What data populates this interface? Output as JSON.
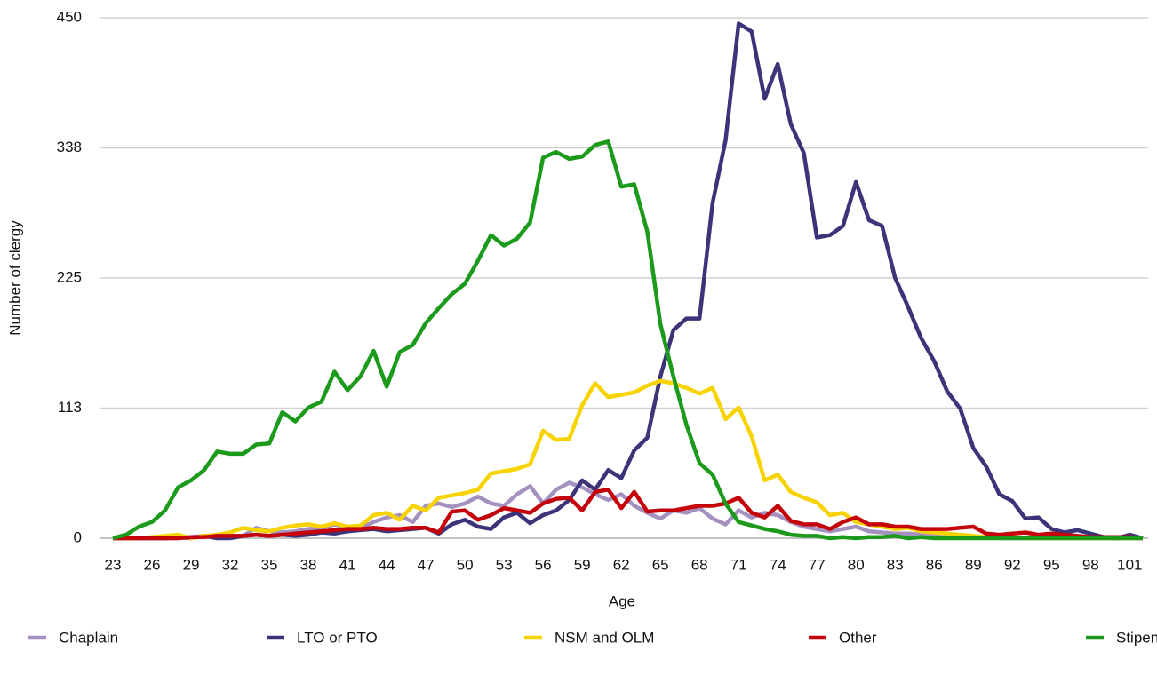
{
  "chart_data": {
    "type": "line",
    "xlabel": "Age",
    "ylabel": "Number of clergy",
    "x": [
      23,
      24,
      25,
      26,
      27,
      28,
      29,
      30,
      31,
      32,
      33,
      34,
      35,
      36,
      37,
      38,
      39,
      40,
      41,
      42,
      43,
      44,
      45,
      46,
      47,
      48,
      49,
      50,
      51,
      52,
      53,
      54,
      55,
      56,
      57,
      58,
      59,
      60,
      61,
      62,
      63,
      64,
      65,
      66,
      67,
      68,
      69,
      70,
      71,
      72,
      73,
      74,
      75,
      76,
      77,
      78,
      79,
      80,
      81,
      82,
      83,
      84,
      85,
      86,
      87,
      88,
      89,
      90,
      91,
      92,
      93,
      94,
      95,
      96,
      97,
      98,
      99,
      100,
      101,
      102
    ],
    "xlim": [
      23,
      102
    ],
    "xticks": [
      23,
      26,
      29,
      32,
      35,
      38,
      41,
      44,
      47,
      50,
      53,
      56,
      59,
      62,
      65,
      68,
      71,
      74,
      77,
      80,
      83,
      86,
      89,
      92,
      95,
      98,
      101
    ],
    "ylim": [
      0,
      450
    ],
    "yticks": [
      0,
      {
        "value": 112.5,
        "label": "113"
      },
      225,
      {
        "value": 337.5,
        "label": "338"
      },
      450
    ],
    "grid": true,
    "legend": "bottom",
    "series": [
      {
        "name": "Chaplain",
        "color": "#a591c0",
        "values": [
          0,
          0,
          0,
          0,
          0,
          0,
          1,
          2,
          2,
          2,
          2,
          9,
          6,
          5,
          6,
          8,
          9,
          12,
          9,
          9,
          14,
          18,
          20,
          14,
          28,
          30,
          27,
          30,
          36,
          30,
          28,
          38,
          45,
          30,
          42,
          48,
          44,
          38,
          33,
          38,
          28,
          22,
          17,
          24,
          22,
          26,
          17,
          12,
          24,
          18,
          22,
          20,
          14,
          10,
          8,
          6,
          8,
          10,
          6,
          5,
          4,
          4,
          3,
          3,
          2,
          2,
          1,
          1,
          0,
          0,
          0,
          0,
          0,
          0,
          0,
          0,
          0,
          0,
          0,
          0
        ]
      },
      {
        "name": "LTO or PTO",
        "color": "#3b3479",
        "values": [
          0,
          0,
          0,
          0,
          0,
          1,
          0,
          2,
          0,
          0,
          2,
          3,
          2,
          3,
          2,
          3,
          5,
          4,
          6,
          7,
          8,
          6,
          7,
          8,
          9,
          4,
          12,
          16,
          10,
          8,
          18,
          22,
          13,
          20,
          24,
          33,
          50,
          42,
          59,
          52,
          76,
          87,
          140,
          180,
          190,
          190,
          290,
          344,
          445,
          438,
          380,
          410,
          358,
          333,
          260,
          262,
          270,
          308,
          275,
          270,
          225,
          200,
          173,
          153,
          127,
          112,
          78,
          62,
          38,
          32,
          17,
          18,
          8,
          5,
          7,
          4,
          1,
          0,
          3,
          0
        ]
      },
      {
        "name": "NSM and OLM",
        "color": "#f7d300",
        "values": [
          0,
          0,
          0,
          1,
          2,
          3,
          0,
          2,
          3,
          5,
          9,
          7,
          6,
          9,
          11,
          12,
          10,
          13,
          10,
          11,
          20,
          22,
          16,
          28,
          24,
          35,
          37,
          39,
          42,
          56,
          58,
          60,
          64,
          93,
          85,
          86,
          115,
          134,
          122,
          124,
          126,
          132,
          136,
          134,
          130,
          125,
          130,
          103,
          113,
          88,
          50,
          55,
          40,
          35,
          31,
          20,
          22,
          14,
          12,
          10,
          8,
          9,
          6,
          5,
          4,
          3,
          2,
          1,
          0,
          1,
          0,
          0,
          0,
          0,
          0,
          0,
          0,
          0,
          0,
          0
        ]
      },
      {
        "name": "Other",
        "color": "#c4040a",
        "values": [
          0,
          0,
          0,
          0,
          0,
          0,
          1,
          1,
          2,
          2,
          2,
          3,
          2,
          3,
          4,
          5,
          6,
          7,
          8,
          8,
          9,
          8,
          8,
          9,
          9,
          5,
          23,
          24,
          16,
          20,
          26,
          24,
          22,
          30,
          34,
          35,
          24,
          40,
          42,
          26,
          40,
          23,
          24,
          24,
          26,
          28,
          28,
          30,
          35,
          22,
          18,
          28,
          15,
          12,
          12,
          8,
          14,
          18,
          12,
          12,
          10,
          10,
          8,
          8,
          8,
          9,
          10,
          4,
          3,
          4,
          5,
          3,
          4,
          3,
          2,
          1,
          1,
          1,
          1,
          0
        ]
      },
      {
        "name": "Stipendiary",
        "color": "#1c9a1c",
        "values": [
          0,
          3,
          10,
          14,
          24,
          44,
          50,
          59,
          75,
          73,
          73,
          81,
          82,
          109,
          101,
          113,
          118,
          144,
          128,
          140,
          162,
          131,
          161,
          167,
          186,
          199,
          211,
          220,
          240,
          262,
          253,
          259,
          273,
          329,
          334,
          328,
          330,
          340,
          343,
          304,
          306,
          265,
          185,
          140,
          98,
          65,
          55,
          30,
          14,
          11,
          8,
          6,
          3,
          2,
          2,
          0,
          1,
          0,
          1,
          1,
          2,
          0,
          1,
          0,
          0,
          0,
          0,
          0,
          0,
          0,
          0,
          0,
          0,
          0,
          0,
          0,
          0,
          0,
          0,
          0
        ]
      }
    ]
  }
}
